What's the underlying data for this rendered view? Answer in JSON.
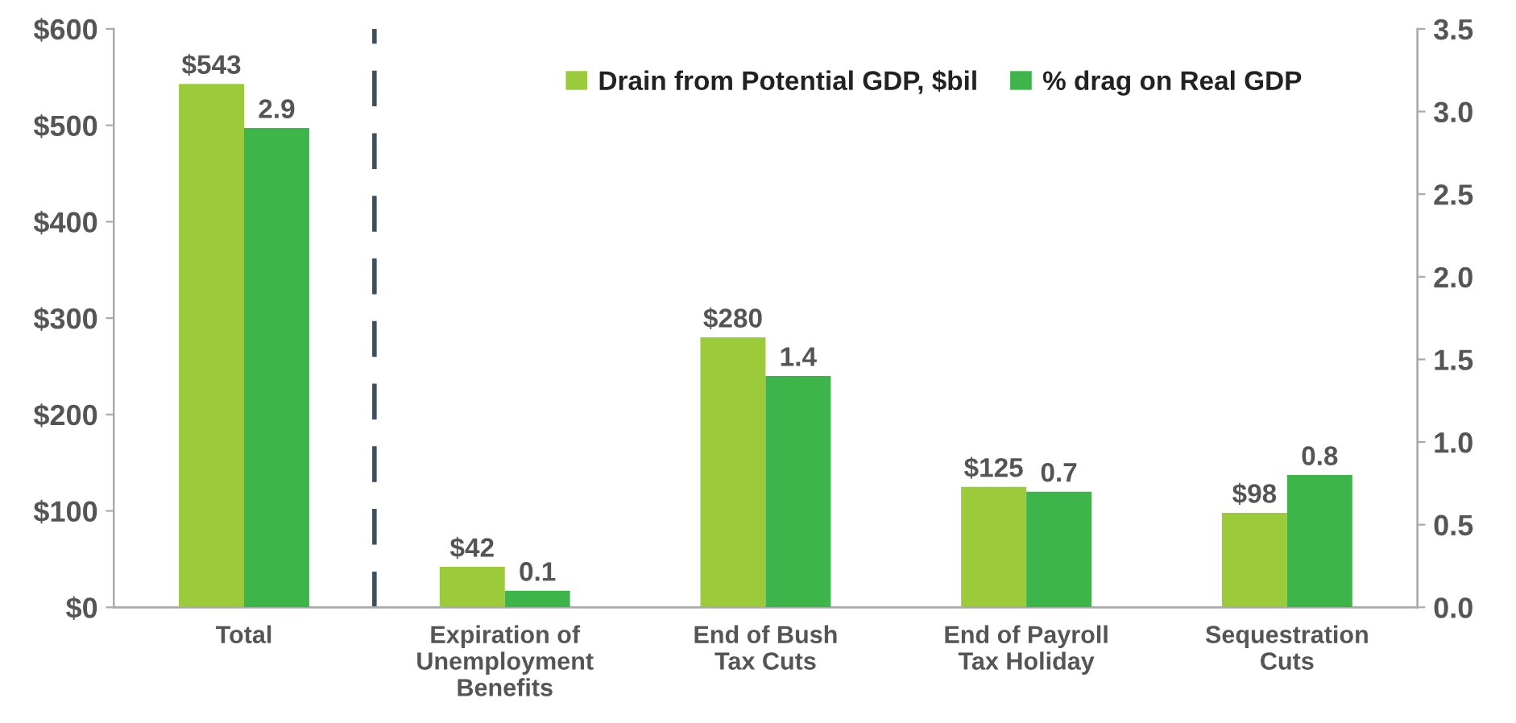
{
  "chart_data": {
    "type": "bar",
    "categories": [
      "Total",
      "Expiration of\nUnemployment\nBenefits",
      "End of Bush\nTax Cuts",
      "End of Payroll\nTax Holiday",
      "Sequestration\nCuts"
    ],
    "series": [
      {
        "name": "Drain from Potential GDP, $bil",
        "color": "#9bcb3b",
        "values": [
          543,
          42,
          280,
          125,
          98
        ],
        "value_labels": [
          "$543",
          "$42",
          "$280",
          "$125",
          "$98"
        ]
      },
      {
        "name": "% drag on Real GDP",
        "color": "#3db54a",
        "axis": "y2",
        "values": [
          2.9,
          0.1,
          1.4,
          0.7,
          0.8
        ],
        "value_labels": [
          "2.9",
          "0.1",
          "1.4",
          "0.7",
          "0.8"
        ]
      }
    ],
    "ylim": [
      0,
      600
    ],
    "yticks": [
      {
        "value": 0,
        "label": "$0"
      },
      {
        "value": 100,
        "label": "$100"
      },
      {
        "value": 200,
        "label": "$200"
      },
      {
        "value": 300,
        "label": "$300"
      },
      {
        "value": 400,
        "label": "$400"
      },
      {
        "value": 500,
        "label": "$500"
      },
      {
        "value": 600,
        "label": "$600"
      }
    ],
    "y2lim": [
      0,
      3.5
    ],
    "y2ticks": [
      {
        "value": 0,
        "label": "0.0"
      },
      {
        "value": 0.5,
        "label": "0.5"
      },
      {
        "value": 1,
        "label": "1.0"
      },
      {
        "value": 1.5,
        "label": "1.5"
      },
      {
        "value": 2,
        "label": "2.0"
      },
      {
        "value": 2.5,
        "label": "2.5"
      },
      {
        "value": 3,
        "label": "3.0"
      },
      {
        "value": 3.5,
        "label": "3.5"
      }
    ],
    "grid": false,
    "legend": "top right"
  }
}
